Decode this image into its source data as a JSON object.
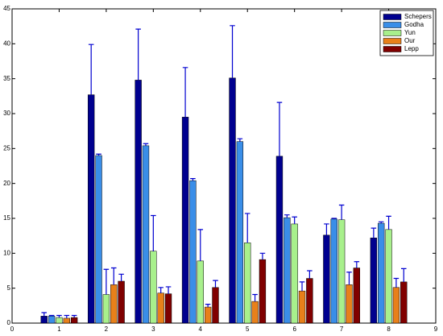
{
  "chart_data": {
    "type": "bar",
    "x": [
      1,
      2,
      3,
      4,
      5,
      6,
      7,
      8
    ],
    "xlim": [
      0,
      9
    ],
    "xticks": [
      0,
      1,
      2,
      3,
      4,
      5,
      6,
      7,
      8,
      9
    ],
    "ylim": [
      0,
      45
    ],
    "yticks": [
      0,
      5,
      10,
      15,
      20,
      25,
      30,
      35,
      40,
      45
    ],
    "grid": false,
    "legend": "top-right",
    "error_color": "#0000d0",
    "series": [
      {
        "name": "Schepers",
        "color": "#00008f",
        "values": [
          1.0,
          32.7,
          34.8,
          29.5,
          35.1,
          23.9,
          12.6,
          12.2
        ],
        "errors": [
          0.5,
          7.2,
          7.3,
          7.1,
          7.5,
          7.7,
          1.6,
          1.4
        ]
      },
      {
        "name": "Godha",
        "color": "#3a8ee8",
        "values": [
          1.0,
          24.0,
          25.4,
          20.4,
          26.0,
          15.1,
          14.9,
          14.3
        ],
        "errors": [
          0.1,
          0.2,
          0.3,
          0.3,
          0.4,
          0.4,
          0.1,
          0.2
        ]
      },
      {
        "name": "Yun",
        "color": "#a8f08c",
        "values": [
          0.8,
          4.1,
          10.3,
          8.9,
          11.5,
          14.2,
          14.8,
          13.4
        ],
        "errors": [
          0.3,
          3.6,
          5.1,
          4.5,
          4.2,
          1.0,
          2.1,
          1.9
        ]
      },
      {
        "name": "Our",
        "color": "#e8801a",
        "values": [
          0.7,
          5.5,
          4.3,
          2.3,
          3.1,
          4.6,
          5.5,
          5.1
        ],
        "errors": [
          0.4,
          2.4,
          0.8,
          0.4,
          1.0,
          1.3,
          1.8,
          1.3
        ]
      },
      {
        "name": "Lepp",
        "color": "#800000",
        "values": [
          0.8,
          6.0,
          4.2,
          5.1,
          9.1,
          6.4,
          7.9,
          5.9
        ],
        "errors": [
          0.3,
          1.0,
          1.0,
          1.0,
          0.9,
          1.1,
          0.9,
          1.9
        ]
      }
    ]
  }
}
